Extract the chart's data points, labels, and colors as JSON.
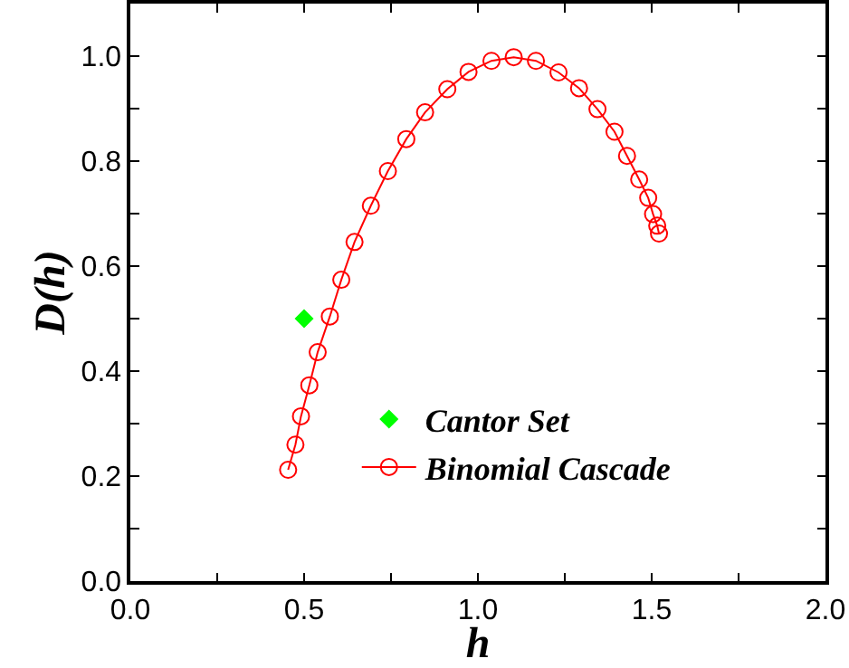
{
  "chart_data": {
    "type": "scatter",
    "xlabel": "h",
    "ylabel": "D(h)",
    "xlim": [
      0,
      2
    ],
    "ylim": [
      0,
      1.1
    ],
    "xticks": [
      {
        "value": 0,
        "label": "0.0"
      },
      {
        "value": 0.25,
        "label": null
      },
      {
        "value": 0.5,
        "label": "0.5"
      },
      {
        "value": 0.75,
        "label": null
      },
      {
        "value": 1,
        "label": "1.0"
      },
      {
        "value": 1.25,
        "label": null
      },
      {
        "value": 1.5,
        "label": "1.5"
      },
      {
        "value": 1.75,
        "label": null
      },
      {
        "value": 2,
        "label": "2.0"
      }
    ],
    "yticks": [
      {
        "value": 0,
        "label": "0.0"
      },
      {
        "value": 0.1,
        "label": null
      },
      {
        "value": 0.2,
        "label": "0.2"
      },
      {
        "value": 0.3,
        "label": null
      },
      {
        "value": 0.4,
        "label": "0.4"
      },
      {
        "value": 0.5,
        "label": null
      },
      {
        "value": 0.6,
        "label": "0.6"
      },
      {
        "value": 0.7,
        "label": null
      },
      {
        "value": 0.8,
        "label": "0.8"
      },
      {
        "value": 0.9,
        "label": null
      },
      {
        "value": 1,
        "label": "1.0"
      }
    ],
    "grid": false,
    "legend": "bottom",
    "series": [
      {
        "name": "Cantor Set",
        "marker": "diamond",
        "color": "#00ff00",
        "x": [
          0.5
        ],
        "values": [
          0.5
        ]
      },
      {
        "name": "Binomial Cascade",
        "type": "line",
        "marker": "circle",
        "color": "#ff0000",
        "x": [
          0.454,
          0.475,
          0.491,
          0.515,
          0.539,
          0.574,
          0.607,
          0.645,
          0.692,
          0.741,
          0.794,
          0.848,
          0.912,
          0.973,
          1.039,
          1.103,
          1.167,
          1.232,
          1.291,
          1.344,
          1.393,
          1.429,
          1.464,
          1.49,
          1.504,
          1.516,
          1.521
        ],
        "values": [
          0.212,
          0.26,
          0.314,
          0.373,
          0.436,
          0.504,
          0.574,
          0.646,
          0.715,
          0.781,
          0.842,
          0.893,
          0.937,
          0.97,
          0.991,
          0.998,
          0.991,
          0.969,
          0.939,
          0.899,
          0.856,
          0.81,
          0.765,
          0.73,
          0.699,
          0.677,
          0.662
        ]
      }
    ]
  }
}
